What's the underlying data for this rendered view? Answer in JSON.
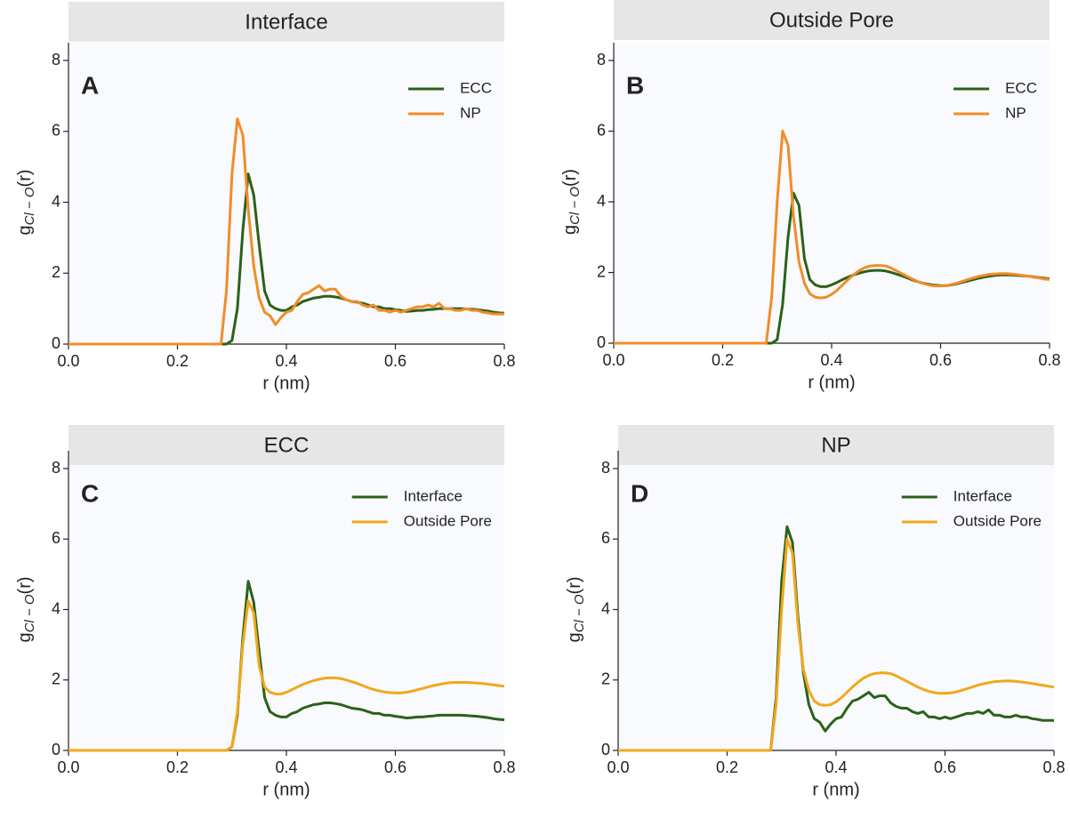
{
  "chart_data": [
    {
      "type": "line",
      "title": "Interface",
      "annotation": "A",
      "xlabel": "r (nm)",
      "ylabel": [
        "g",
        "Cl − O",
        "(r)"
      ],
      "x": [
        0,
        0.28,
        0.29,
        0.3,
        0.31,
        0.32,
        0.33,
        0.34,
        0.35,
        0.36,
        0.37,
        0.38,
        0.39,
        0.4,
        0.41,
        0.42,
        0.43,
        0.44,
        0.45,
        0.46,
        0.47,
        0.48,
        0.49,
        0.5,
        0.51,
        0.52,
        0.53,
        0.54,
        0.55,
        0.56,
        0.57,
        0.58,
        0.59,
        0.6,
        0.61,
        0.62,
        0.63,
        0.64,
        0.65,
        0.66,
        0.67,
        0.68,
        0.69,
        0.7,
        0.71,
        0.72,
        0.73,
        0.74,
        0.75,
        0.76,
        0.77,
        0.78,
        0.79,
        0.8
      ],
      "series": [
        {
          "name": "ECC",
          "color": "#2b6119",
          "values": [
            0,
            0,
            0,
            0.1,
            1.0,
            3.2,
            4.8,
            4.2,
            2.8,
            1.5,
            1.1,
            1.0,
            0.95,
            0.95,
            1.05,
            1.1,
            1.2,
            1.25,
            1.3,
            1.32,
            1.35,
            1.35,
            1.33,
            1.3,
            1.25,
            1.2,
            1.18,
            1.15,
            1.1,
            1.05,
            1.05,
            1.0,
            1.0,
            0.97,
            0.95,
            0.92,
            0.93,
            0.95,
            0.95,
            0.97,
            0.98,
            1.0,
            1.0,
            1.0,
            1.0,
            1.0,
            0.99,
            0.98,
            0.97,
            0.95,
            0.93,
            0.9,
            0.88,
            0.87
          ]
        },
        {
          "name": "NP",
          "color": "#f28c28",
          "values": [
            0,
            0,
            1.5,
            4.8,
            6.35,
            5.9,
            3.8,
            2.2,
            1.3,
            0.9,
            0.8,
            0.55,
            0.75,
            0.9,
            0.95,
            1.2,
            1.4,
            1.45,
            1.55,
            1.65,
            1.5,
            1.55,
            1.55,
            1.35,
            1.25,
            1.2,
            1.2,
            1.1,
            1.05,
            1.1,
            0.95,
            0.95,
            0.9,
            0.95,
            0.9,
            0.95,
            1.0,
            1.05,
            1.05,
            1.1,
            1.05,
            1.15,
            1.0,
            1.0,
            0.95,
            0.95,
            1.0,
            0.95,
            0.95,
            0.9,
            0.88,
            0.85,
            0.85,
            0.85
          ]
        }
      ],
      "xlim": [
        0,
        0.8
      ],
      "ylim": [
        0,
        8
      ],
      "xticks": [
        {
          "value": 0,
          "label": "0.0"
        },
        0.2,
        0.4,
        0.6,
        0.8
      ],
      "yticks": [
        0,
        2,
        4,
        6,
        8
      ],
      "legend": "upper right"
    },
    {
      "type": "line",
      "title": "Outside Pore",
      "annotation": "B",
      "xlabel": "r (nm)",
      "ylabel": [
        "g",
        "Cl − O",
        "(r)"
      ],
      "x": [
        0,
        0.28,
        0.29,
        0.3,
        0.31,
        0.32,
        0.33,
        0.34,
        0.35,
        0.36,
        0.37,
        0.38,
        0.39,
        0.4,
        0.41,
        0.42,
        0.43,
        0.44,
        0.45,
        0.46,
        0.47,
        0.48,
        0.49,
        0.5,
        0.51,
        0.52,
        0.53,
        0.54,
        0.55,
        0.56,
        0.57,
        0.58,
        0.59,
        0.6,
        0.61,
        0.62,
        0.63,
        0.64,
        0.65,
        0.66,
        0.67,
        0.68,
        0.69,
        0.7,
        0.71,
        0.72,
        0.73,
        0.74,
        0.75,
        0.76,
        0.77,
        0.78,
        0.79,
        0.8
      ],
      "series": [
        {
          "name": "ECC",
          "color": "#2b6119",
          "values": [
            0,
            0,
            0,
            0.1,
            1.1,
            3.0,
            4.25,
            3.9,
            2.4,
            1.8,
            1.65,
            1.6,
            1.6,
            1.65,
            1.72,
            1.8,
            1.87,
            1.93,
            1.98,
            2.02,
            2.05,
            2.06,
            2.06,
            2.04,
            2.0,
            1.95,
            1.9,
            1.84,
            1.78,
            1.73,
            1.69,
            1.66,
            1.64,
            1.63,
            1.63,
            1.65,
            1.68,
            1.72,
            1.76,
            1.8,
            1.84,
            1.87,
            1.9,
            1.92,
            1.93,
            1.93,
            1.93,
            1.92,
            1.91,
            1.9,
            1.88,
            1.86,
            1.84,
            1.82
          ]
        },
        {
          "name": "NP",
          "color": "#f28c28",
          "values": [
            0,
            0,
            1.3,
            4.0,
            6.0,
            5.6,
            3.6,
            2.3,
            1.7,
            1.4,
            1.3,
            1.28,
            1.3,
            1.38,
            1.5,
            1.65,
            1.8,
            1.93,
            2.05,
            2.13,
            2.18,
            2.2,
            2.2,
            2.18,
            2.12,
            2.04,
            1.96,
            1.88,
            1.8,
            1.73,
            1.68,
            1.64,
            1.62,
            1.62,
            1.63,
            1.66,
            1.7,
            1.75,
            1.8,
            1.85,
            1.89,
            1.92,
            1.95,
            1.96,
            1.97,
            1.97,
            1.96,
            1.94,
            1.92,
            1.9,
            1.87,
            1.85,
            1.82,
            1.8
          ]
        }
      ],
      "xlim": [
        0,
        0.8
      ],
      "ylim": [
        0,
        8
      ],
      "xticks": [
        {
          "value": 0,
          "label": "0.0"
        },
        0.2,
        0.4,
        0.6,
        0.8
      ],
      "yticks": [
        0,
        2,
        4,
        6,
        8
      ],
      "legend": "upper right"
    },
    {
      "type": "line",
      "title": "ECC",
      "annotation": "C",
      "xlabel": "r (nm)",
      "ylabel": [
        "g",
        "Cl − O",
        "(r)"
      ],
      "x": [
        0,
        0.28,
        0.29,
        0.3,
        0.31,
        0.32,
        0.33,
        0.34,
        0.35,
        0.36,
        0.37,
        0.38,
        0.39,
        0.4,
        0.41,
        0.42,
        0.43,
        0.44,
        0.45,
        0.46,
        0.47,
        0.48,
        0.49,
        0.5,
        0.51,
        0.52,
        0.53,
        0.54,
        0.55,
        0.56,
        0.57,
        0.58,
        0.59,
        0.6,
        0.61,
        0.62,
        0.63,
        0.64,
        0.65,
        0.66,
        0.67,
        0.68,
        0.69,
        0.7,
        0.71,
        0.72,
        0.73,
        0.74,
        0.75,
        0.76,
        0.77,
        0.78,
        0.79,
        0.8
      ],
      "series": [
        {
          "name": "Interface",
          "color": "#2b6119",
          "values": [
            0,
            0,
            0,
            0.1,
            1.0,
            3.2,
            4.8,
            4.2,
            2.8,
            1.5,
            1.1,
            1.0,
            0.95,
            0.95,
            1.05,
            1.1,
            1.2,
            1.25,
            1.3,
            1.32,
            1.35,
            1.35,
            1.33,
            1.3,
            1.25,
            1.2,
            1.18,
            1.15,
            1.1,
            1.05,
            1.05,
            1.0,
            1.0,
            0.97,
            0.95,
            0.92,
            0.93,
            0.95,
            0.95,
            0.97,
            0.98,
            1.0,
            1.0,
            1.0,
            1.0,
            1.0,
            0.99,
            0.98,
            0.97,
            0.95,
            0.93,
            0.9,
            0.88,
            0.87
          ]
        },
        {
          "name": "Outside Pore",
          "color": "#f0a81c",
          "values": [
            0,
            0,
            0,
            0.1,
            1.1,
            3.0,
            4.25,
            3.9,
            2.4,
            1.8,
            1.65,
            1.6,
            1.6,
            1.65,
            1.72,
            1.8,
            1.87,
            1.93,
            1.98,
            2.02,
            2.05,
            2.06,
            2.06,
            2.04,
            2.0,
            1.95,
            1.9,
            1.84,
            1.78,
            1.73,
            1.69,
            1.66,
            1.64,
            1.63,
            1.63,
            1.65,
            1.68,
            1.72,
            1.76,
            1.8,
            1.84,
            1.87,
            1.9,
            1.92,
            1.93,
            1.93,
            1.93,
            1.92,
            1.91,
            1.9,
            1.88,
            1.86,
            1.84,
            1.82
          ]
        }
      ],
      "xlim": [
        0,
        0.8
      ],
      "ylim": [
        0,
        8
      ],
      "xticks": [
        {
          "value": 0,
          "label": "0.0"
        },
        0.2,
        0.4,
        0.6,
        0.8
      ],
      "yticks": [
        0,
        2,
        4,
        6,
        8
      ],
      "legend": "upper right"
    },
    {
      "type": "line",
      "title": "NP",
      "annotation": "D",
      "xlabel": "r (nm)",
      "ylabel": [
        "g",
        "Cl − O",
        "(r)"
      ],
      "x": [
        0,
        0.28,
        0.29,
        0.3,
        0.31,
        0.32,
        0.33,
        0.34,
        0.35,
        0.36,
        0.37,
        0.38,
        0.39,
        0.4,
        0.41,
        0.42,
        0.43,
        0.44,
        0.45,
        0.46,
        0.47,
        0.48,
        0.49,
        0.5,
        0.51,
        0.52,
        0.53,
        0.54,
        0.55,
        0.56,
        0.57,
        0.58,
        0.59,
        0.6,
        0.61,
        0.62,
        0.63,
        0.64,
        0.65,
        0.66,
        0.67,
        0.68,
        0.69,
        0.7,
        0.71,
        0.72,
        0.73,
        0.74,
        0.75,
        0.76,
        0.77,
        0.78,
        0.79,
        0.8
      ],
      "series": [
        {
          "name": "Interface",
          "color": "#2b6119",
          "values": [
            0,
            0,
            1.5,
            4.8,
            6.35,
            5.9,
            3.8,
            2.2,
            1.3,
            0.9,
            0.8,
            0.55,
            0.75,
            0.9,
            0.95,
            1.2,
            1.4,
            1.45,
            1.55,
            1.65,
            1.5,
            1.55,
            1.55,
            1.35,
            1.25,
            1.2,
            1.2,
            1.1,
            1.05,
            1.1,
            0.95,
            0.95,
            0.9,
            0.95,
            0.9,
            0.95,
            1.0,
            1.05,
            1.05,
            1.1,
            1.05,
            1.15,
            1.0,
            1.0,
            0.95,
            0.95,
            1.0,
            0.95,
            0.95,
            0.9,
            0.88,
            0.85,
            0.85,
            0.85
          ]
        },
        {
          "name": "Outside Pore",
          "color": "#f0a81c",
          "values": [
            0,
            0,
            1.3,
            4.0,
            6.0,
            5.6,
            3.6,
            2.3,
            1.7,
            1.4,
            1.3,
            1.28,
            1.3,
            1.38,
            1.5,
            1.65,
            1.8,
            1.93,
            2.05,
            2.13,
            2.18,
            2.2,
            2.2,
            2.18,
            2.12,
            2.04,
            1.96,
            1.88,
            1.8,
            1.73,
            1.68,
            1.64,
            1.62,
            1.62,
            1.63,
            1.66,
            1.7,
            1.75,
            1.8,
            1.85,
            1.89,
            1.92,
            1.95,
            1.96,
            1.97,
            1.97,
            1.96,
            1.94,
            1.92,
            1.9,
            1.87,
            1.85,
            1.82,
            1.8
          ]
        }
      ],
      "xlim": [
        0,
        0.8
      ],
      "ylim": [
        0,
        8
      ],
      "xticks": [
        {
          "value": 0,
          "label": "0.0"
        },
        0.2,
        0.4,
        0.6,
        0.8
      ],
      "yticks": [
        0,
        2,
        4,
        6,
        8
      ],
      "legend": "upper right"
    }
  ]
}
